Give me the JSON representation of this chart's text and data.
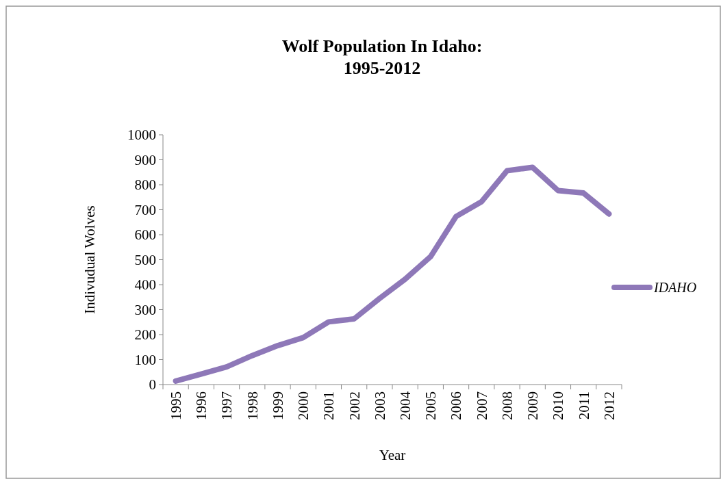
{
  "chart_data": {
    "type": "line",
    "title": "Wolf Population In Idaho:\n1995-2012",
    "xlabel": "Year",
    "ylabel": "Indivudual Wolves",
    "categories": [
      "1995",
      "1996",
      "1997",
      "1998",
      "1999",
      "2000",
      "2001",
      "2002",
      "2003",
      "2004",
      "2005",
      "2006",
      "2007",
      "2008",
      "2009",
      "2010",
      "2011",
      "2012"
    ],
    "series": [
      {
        "name": "IDAHO",
        "color": "#8e78b8",
        "values": [
          14,
          42,
          71,
          116,
          156,
          188,
          251,
          263,
          345,
          422,
          512,
          673,
          732,
          856,
          870,
          777,
          767,
          683
        ]
      }
    ],
    "ylim": [
      0,
      1000
    ],
    "yticks": [
      0,
      100,
      200,
      300,
      400,
      500,
      600,
      700,
      800,
      900,
      1000
    ],
    "grid": false,
    "legend": "right",
    "marker": "none",
    "line_style": "solid"
  }
}
